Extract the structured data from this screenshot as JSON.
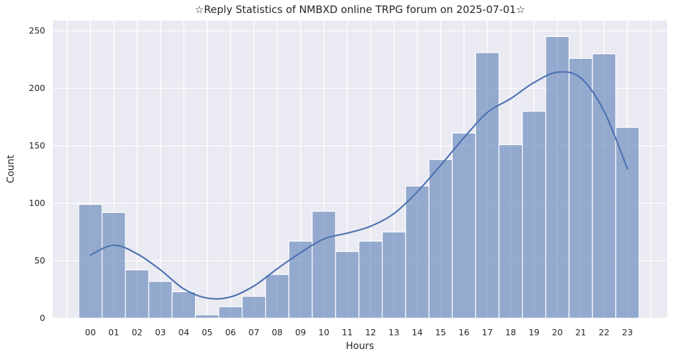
{
  "chart_data": {
    "type": "bar",
    "title": "☆Reply Statistics of NMBXD online TRPG forum on 2025-07-01☆",
    "xlabel": "Hours",
    "ylabel": "Count",
    "categories": [
      "00",
      "01",
      "02",
      "03",
      "04",
      "05",
      "06",
      "07",
      "08",
      "09",
      "10",
      "11",
      "12",
      "13",
      "14",
      "15",
      "16",
      "17",
      "18",
      "19",
      "20",
      "21",
      "22",
      "23"
    ],
    "values": [
      99,
      92,
      42,
      32,
      23,
      3,
      10,
      19,
      38,
      67,
      93,
      58,
      67,
      75,
      115,
      138,
      161,
      231,
      151,
      180,
      245,
      226,
      230,
      166
    ],
    "trend_line": {
      "name": "smoothed-density-curve",
      "values": [
        55,
        63.5,
        56,
        42,
        25.5,
        17.5,
        18.5,
        28,
        43,
        57,
        69,
        74,
        80,
        91,
        110,
        133,
        157,
        179,
        191,
        205,
        214,
        209,
        180,
        130
      ]
    },
    "yticks": [
      0,
      50,
      100,
      150,
      200,
      250
    ],
    "ylim": [
      0,
      259
    ],
    "grid": true,
    "legend": "none",
    "colors": {
      "bar_fill": "#4C72B0",
      "bar_alpha": 0.55,
      "bar_edge": "#FFFFFF",
      "line": "#4C72B0",
      "plot_background": "#EAEAF2",
      "gridline": "#FFFFFF",
      "figure_background": "#FFFFFF",
      "text": "#262626"
    }
  }
}
